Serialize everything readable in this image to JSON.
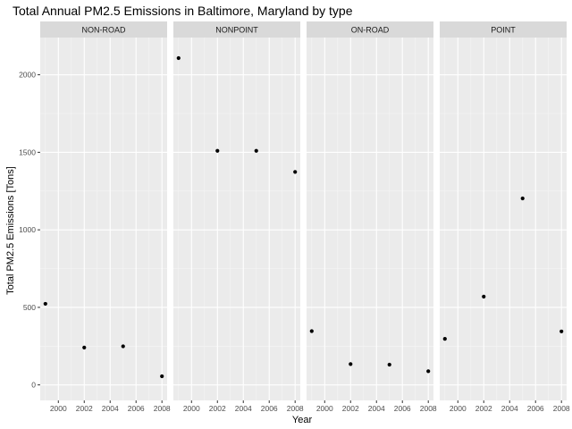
{
  "chart_data": {
    "type": "scatter",
    "title": "Total Annual PM2.5 Emissions in Baltimore, Maryland by type",
    "xlabel": "Year",
    "ylabel": "Total PM2.5 Emissions [Tons]",
    "xlim": [
      1998.6,
      2008.4
    ],
    "ylim": [
      -100,
      2240
    ],
    "x_ticks": [
      2000,
      2002,
      2004,
      2006,
      2008
    ],
    "y_ticks": [
      0,
      500,
      1000,
      1500,
      2000
    ],
    "grid": true,
    "legend": "none",
    "panels": [
      {
        "name": "NON-ROAD",
        "x": [
          1999,
          2002,
          2005,
          2008
        ],
        "y": [
          522.94,
          240.85,
          248.93,
          55.82
        ]
      },
      {
        "name": "NONPOINT",
        "x": [
          1999,
          2002,
          2005,
          2008
        ],
        "y": [
          2107.63,
          1509.5,
          1509.5,
          1373.21
        ]
      },
      {
        "name": "ON-ROAD",
        "x": [
          1999,
          2002,
          2005,
          2008
        ],
        "y": [
          346.82,
          134.31,
          130.43,
          88.28
        ]
      },
      {
        "name": "POINT",
        "x": [
          1999,
          2002,
          2005,
          2008
        ],
        "y": [
          296.8,
          569.26,
          1202.49,
          344.98
        ]
      }
    ],
    "colors": {
      "panel_background": "#EBEBEB",
      "strip_background": "#D9D9D9",
      "grid_major": "#FFFFFF",
      "grid_minor": "#F5F5F5",
      "point": "#000000",
      "tick": "#333333"
    }
  }
}
